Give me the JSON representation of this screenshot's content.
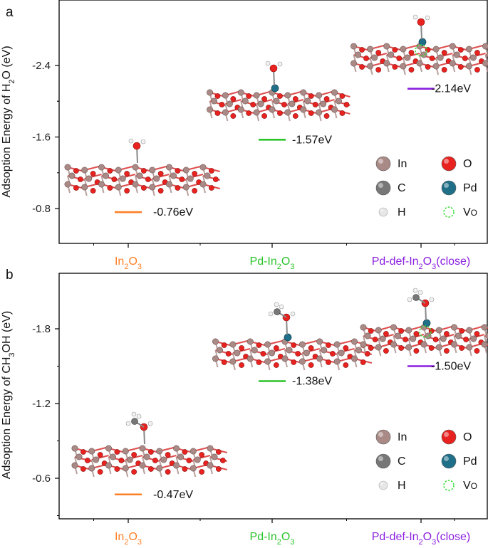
{
  "chart_data": [
    {
      "type": "scatter",
      "panel": "a",
      "ylabel": "Adsoption Energy of H₂O (eV)",
      "y_ticks": [
        "-2.4",
        "-1.6",
        "-0.8"
      ],
      "ylim": [
        -0.4,
        -2.9
      ],
      "categories": [
        "In₂O₃",
        "Pd-In₂O₃",
        "Pd-def-In₂O₃(close)"
      ],
      "category_colors": [
        "#ff7f27",
        "#2bc42b",
        "#8b1fe0"
      ],
      "values": [
        -0.76,
        -1.57,
        -2.14
      ],
      "value_labels": [
        "-0.76eV",
        "-1.57eV",
        "-2.14eV"
      ],
      "legend": [
        "In",
        "O",
        "C",
        "Pd",
        "H",
        "VO"
      ]
    },
    {
      "type": "scatter",
      "panel": "b",
      "ylabel": "Adsoption Energy of CH₃OH (eV)",
      "y_ticks": [
        "-1.8",
        "-1.2",
        "-0.6"
      ],
      "ylim": [
        -0.3,
        -2.2
      ],
      "categories": [
        "In₂O₃",
        "Pd-In₂O₃",
        "Pd-def-In₂O₃(close)"
      ],
      "category_colors": [
        "#ff7f27",
        "#2bc42b",
        "#8b1fe0"
      ],
      "values": [
        -0.47,
        -1.38,
        -1.5
      ],
      "value_labels": [
        "-0.47eV",
        "-1.38eV",
        "-1.50eV"
      ],
      "legend": [
        "In",
        "O",
        "C",
        "Pd",
        "H",
        "VO"
      ]
    }
  ],
  "legend_colors": {
    "In": "#a98a86",
    "O": "#e8221f",
    "C": "#777777",
    "Pd": "#1f6f89",
    "H": "#e6e6e6",
    "VO": "#33dd33"
  }
}
